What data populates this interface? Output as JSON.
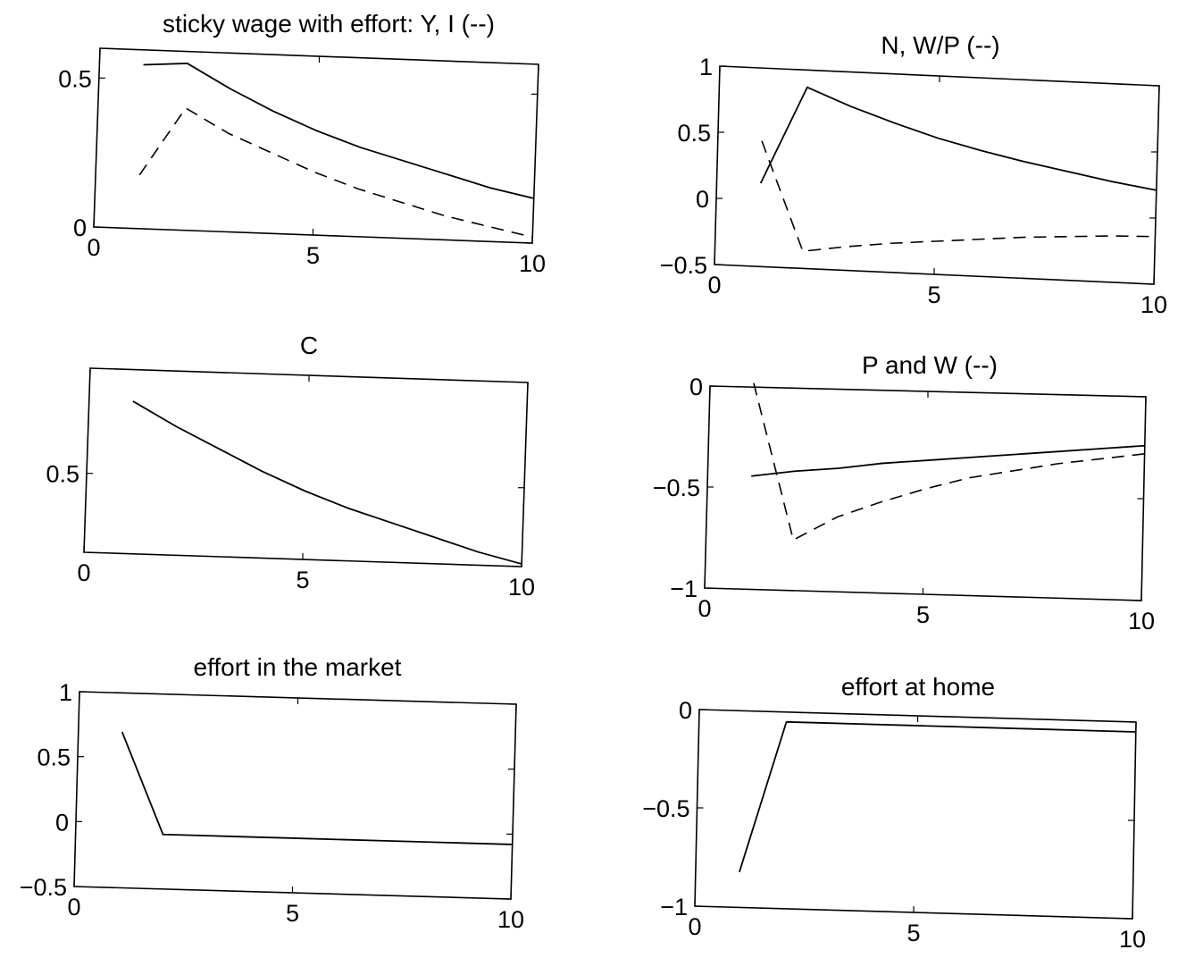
{
  "chart_data": [
    {
      "type": "line",
      "title": "sticky wage with effort: Y, I (--)",
      "xlim": [
        0,
        10
      ],
      "ylim": [
        0,
        0.6
      ],
      "xticks": [
        0,
        5,
        10
      ],
      "xtick_labels": [
        "0",
        "5",
        "10"
      ],
      "yticks": [
        0,
        0.5
      ],
      "ytick_labels": [
        "0",
        "0.5"
      ],
      "grid": false,
      "series": [
        {
          "style": "solid",
          "x": [
            1,
            2,
            3,
            4,
            5,
            6,
            7,
            8,
            9,
            10
          ],
          "y": [
            0.55,
            0.56,
            0.48,
            0.41,
            0.35,
            0.3,
            0.26,
            0.22,
            0.18,
            0.15
          ]
        },
        {
          "style": "dashed",
          "x": [
            1,
            2,
            3,
            4,
            5,
            6,
            7,
            8,
            9,
            10
          ],
          "y": [
            0.18,
            0.41,
            0.33,
            0.27,
            0.21,
            0.16,
            0.12,
            0.08,
            0.05,
            0.02
          ]
        }
      ]
    },
    {
      "type": "line",
      "title": "N, W/P (--)",
      "xlim": [
        0,
        10
      ],
      "ylim": [
        -0.5,
        1
      ],
      "xticks": [
        0,
        5,
        10
      ],
      "xtick_labels": [
        "0",
        "5",
        "10"
      ],
      "yticks": [
        -0.5,
        0,
        0.5,
        1
      ],
      "ytick_labels": [
        "−0.5",
        "0",
        "0.5",
        "1"
      ],
      "grid": false,
      "series": [
        {
          "style": "solid",
          "x": [
            1,
            2,
            3,
            4,
            5,
            6,
            7,
            8,
            9,
            10
          ],
          "y": [
            0.13,
            0.87,
            0.74,
            0.63,
            0.53,
            0.45,
            0.38,
            0.32,
            0.26,
            0.21
          ]
        },
        {
          "style": "dashed",
          "x": [
            1,
            2,
            3,
            4,
            5,
            6,
            7,
            8,
            9,
            10
          ],
          "y": [
            0.45,
            -0.37,
            -0.32,
            -0.28,
            -0.25,
            -0.22,
            -0.19,
            -0.17,
            -0.15,
            -0.14
          ]
        }
      ]
    },
    {
      "type": "line",
      "title": "C",
      "xlim": [
        0,
        10
      ],
      "ylim": [
        0.2,
        0.9
      ],
      "xticks": [
        0,
        5,
        10
      ],
      "xtick_labels": [
        "0",
        "5",
        "10"
      ],
      "yticks": [
        0.5
      ],
      "ytick_labels": [
        "0.5"
      ],
      "grid": false,
      "series": [
        {
          "style": "solid",
          "x": [
            1,
            2,
            3,
            4,
            5,
            6,
            7,
            8,
            9,
            10
          ],
          "y": [
            0.78,
            0.69,
            0.61,
            0.53,
            0.46,
            0.4,
            0.35,
            0.3,
            0.25,
            0.21
          ]
        }
      ]
    },
    {
      "type": "line",
      "title": "P and W (--)",
      "xlim": [
        0,
        10
      ],
      "ylim": [
        -1,
        0
      ],
      "xticks": [
        0,
        5,
        10
      ],
      "xtick_labels": [
        "0",
        "5",
        "10"
      ],
      "yticks": [
        -1,
        -0.5,
        0
      ],
      "ytick_labels": [
        "−1",
        "−0.5",
        "0"
      ],
      "grid": false,
      "series": [
        {
          "style": "solid",
          "x": [
            1,
            2,
            3,
            4,
            5,
            6,
            7,
            8,
            9,
            10
          ],
          "y": [
            -0.44,
            -0.41,
            -0.39,
            -0.36,
            -0.34,
            -0.32,
            -0.3,
            -0.28,
            -0.26,
            -0.24
          ]
        },
        {
          "style": "dashed",
          "x": [
            1,
            2,
            3,
            4,
            5,
            6,
            7,
            8,
            9,
            10
          ],
          "y": [
            0.02,
            -0.75,
            -0.63,
            -0.55,
            -0.48,
            -0.42,
            -0.38,
            -0.34,
            -0.31,
            -0.28
          ]
        }
      ]
    },
    {
      "type": "line",
      "title": "effort in the market",
      "xlim": [
        0,
        10
      ],
      "ylim": [
        -0.5,
        1
      ],
      "xticks": [
        0,
        5,
        10
      ],
      "xtick_labels": [
        "0",
        "5",
        "10"
      ],
      "yticks": [
        -0.5,
        0,
        0.5,
        1
      ],
      "ytick_labels": [
        "−0.5",
        "0",
        "0.5",
        "1"
      ],
      "grid": false,
      "series": [
        {
          "style": "solid",
          "x": [
            1,
            2,
            3,
            4,
            5,
            6,
            7,
            8,
            9,
            10
          ],
          "y": [
            0.7,
            -0.08,
            -0.08,
            -0.08,
            -0.08,
            -0.08,
            -0.08,
            -0.08,
            -0.08,
            -0.08
          ]
        }
      ]
    },
    {
      "type": "line",
      "title": "effort at home",
      "xlim": [
        0,
        10
      ],
      "ylim": [
        -1,
        0
      ],
      "xticks": [
        0,
        5,
        10
      ],
      "xtick_labels": [
        "0",
        "5",
        "10"
      ],
      "yticks": [
        -1,
        -0.5,
        0
      ],
      "ytick_labels": [
        "−1",
        "−0.5",
        "0"
      ],
      "grid": false,
      "series": [
        {
          "style": "solid",
          "x": [
            1,
            2,
            3,
            4,
            5,
            6,
            7,
            8,
            9,
            10
          ],
          "y": [
            -0.82,
            -0.05,
            -0.05,
            -0.05,
            -0.05,
            -0.05,
            -0.05,
            -0.05,
            -0.05,
            -0.05
          ]
        }
      ]
    }
  ]
}
